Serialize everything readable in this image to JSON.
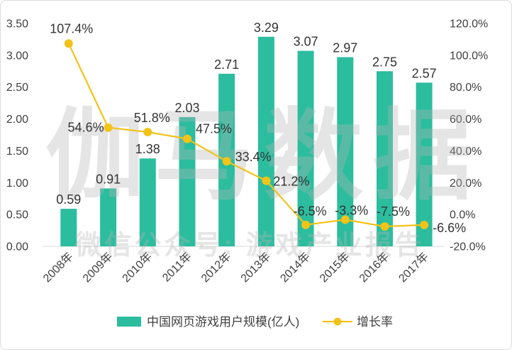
{
  "watermark": {
    "main": "伽马数据",
    "sub": "微信公众号: 游戏产业报告"
  },
  "colors": {
    "bar": "#2bbd9e",
    "line": "#f2c318",
    "text": "#404040",
    "label": "#333333",
    "watermark": "#b4b4b4",
    "axis": "#d9d9d9",
    "frame": "#dcdcdc"
  },
  "chart_data": {
    "type": "bar",
    "categories": [
      "2008年",
      "2009年",
      "2010年",
      "2011年",
      "2012年",
      "2013年",
      "2014年",
      "2015年",
      "2016年",
      "2017年"
    ],
    "series": [
      {
        "name": "中国网页游戏用户规模(亿人)",
        "type": "bar",
        "axis": "left",
        "values": [
          0.59,
          0.91,
          1.38,
          2.03,
          2.71,
          3.29,
          3.07,
          2.97,
          2.75,
          2.57
        ]
      },
      {
        "name": "增长率",
        "type": "line",
        "axis": "right",
        "values": [
          107.4,
          54.6,
          51.8,
          47.5,
          33.4,
          21.2,
          -6.5,
          -3.3,
          -7.5,
          -6.6
        ],
        "data_labels": [
          "107.4%",
          "54.6%",
          "51.8%",
          "47.5%",
          "33.4%",
          "21.2%",
          "-6.5%",
          "-3.3%",
          "-7.5%",
          "-6.6%"
        ]
      }
    ],
    "y_left": {
      "range": [
        0,
        3.5
      ],
      "ticks": [
        "0.00",
        "0.50",
        "1.00",
        "1.50",
        "2.00",
        "2.50",
        "3.00",
        "3.50"
      ]
    },
    "y_right": {
      "range": [
        -20,
        120
      ],
      "ticks": [
        "-20.0%",
        "0.0%",
        "20.0%",
        "40.0%",
        "60.0%",
        "80.0%",
        "100.0%",
        "120.0%"
      ]
    },
    "grid": false,
    "legend": "bottom"
  }
}
